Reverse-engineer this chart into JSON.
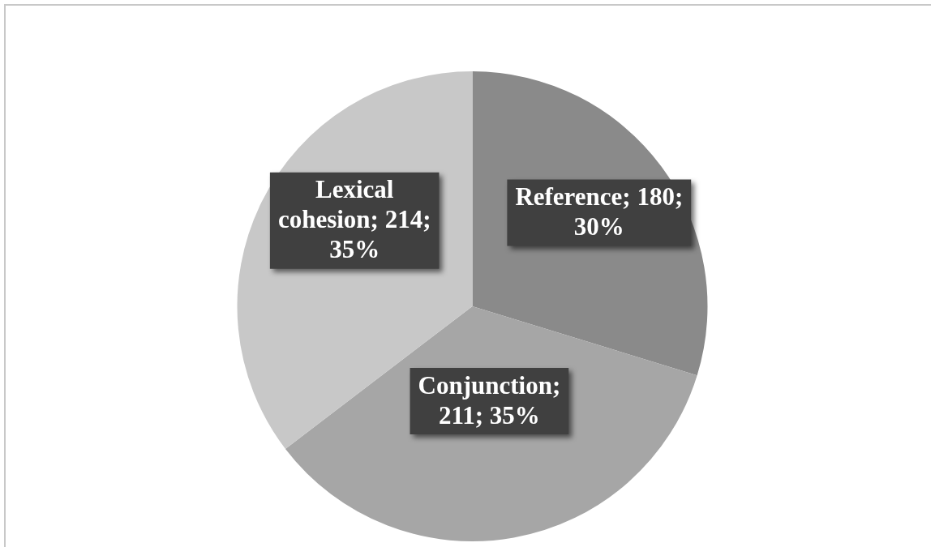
{
  "chart_data": {
    "type": "pie",
    "categories": [
      "Reference",
      "Conjunction",
      "Lexical cohesion"
    ],
    "values": [
      180,
      211,
      214
    ],
    "colors": [
      "#8a8a8a",
      "#a6a6a6",
      "#c8c8c8"
    ],
    "value_labels": [
      "; 180; 30%",
      "; 211; 35%",
      "; 214; 35%"
    ],
    "legend": false
  }
}
